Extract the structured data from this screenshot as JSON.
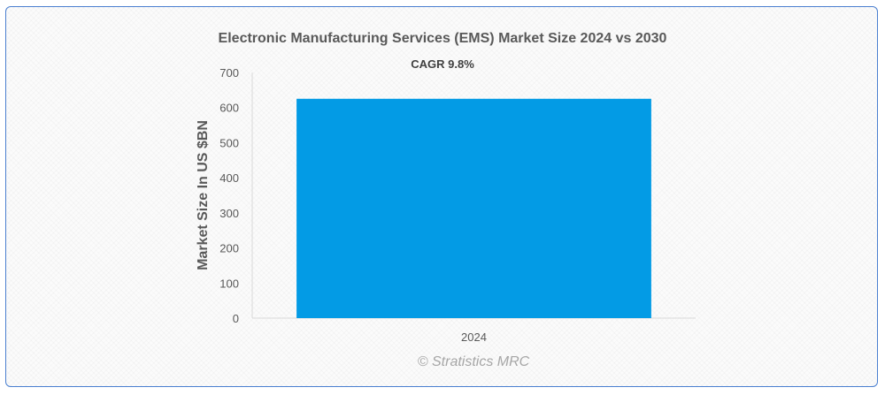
{
  "chart_data": {
    "type": "bar",
    "title": "Electronic Manufacturing Services (EMS) Market Size 2024 vs 2030",
    "annotation": "CAGR 9.8%",
    "categories": [
      "2024"
    ],
    "series": [
      {
        "values": [
          625
        ]
      }
    ],
    "xlabel": "",
    "ylabel": "Market Size In US $BN",
    "ylim": [
      0,
      700
    ],
    "yticks": [
      0,
      100,
      200,
      300,
      400,
      500,
      600,
      700
    ],
    "grid": false,
    "legend": "none",
    "bar_color": "#039be5",
    "credit": "© Stratistics MRC"
  }
}
